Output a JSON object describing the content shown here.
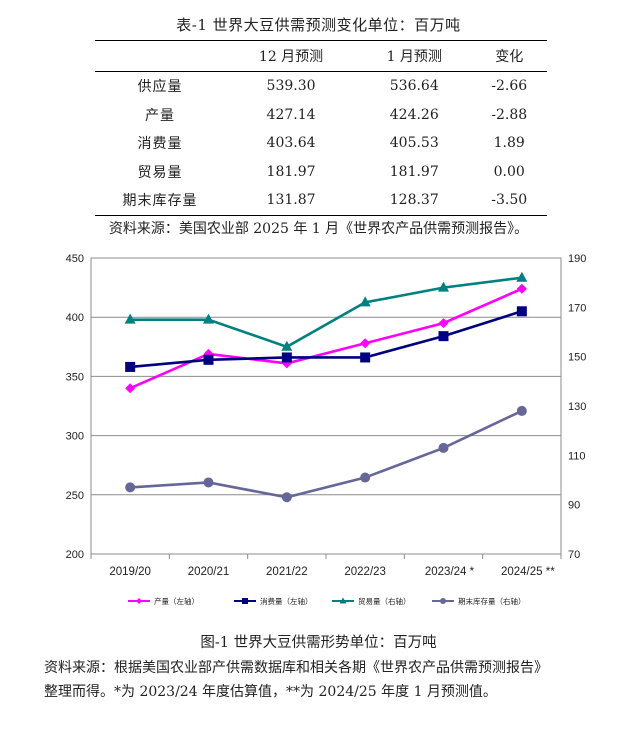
{
  "table": {
    "title": "表-1 世界大豆供需预测变化单位：百万吨",
    "headers": [
      "",
      "12 月预测",
      "1 月预测",
      "变化"
    ],
    "rows": [
      [
        "供应量",
        "539.30",
        "536.64",
        "-2.66"
      ],
      [
        "产量",
        "427.14",
        "424.26",
        "-2.88"
      ],
      [
        "消费量",
        "403.64",
        "405.53",
        "1.89"
      ],
      [
        "贸易量",
        "181.97",
        "181.97",
        "0.00"
      ],
      [
        "期末库存量",
        "131.87",
        "128.37",
        "-3.50"
      ]
    ],
    "source": "资料来源：美国农业部 2025 年 1 月《世界农产品供需预测报告》。"
  },
  "chart_data": {
    "type": "line",
    "categories": [
      "2019/20",
      "2020/21",
      "2021/22",
      "2022/23",
      "2023/24 *",
      "2024/25 **"
    ],
    "y_left": {
      "ticks": [
        200,
        250,
        300,
        350,
        400,
        450
      ],
      "lim": [
        200,
        450
      ]
    },
    "y_right": {
      "ticks": [
        70,
        90,
        110,
        130,
        150,
        170,
        190
      ],
      "lim": [
        70,
        190
      ]
    },
    "grid": true,
    "legend_position": "bottom",
    "series": [
      {
        "name": "产量（左轴）",
        "axis": "left",
        "color": "#ff00ff",
        "marker": "diamond",
        "values": [
          340,
          369,
          361,
          378,
          395,
          424
        ]
      },
      {
        "name": "消费量（左轴）",
        "axis": "left",
        "color": "#000080",
        "marker": "square",
        "values": [
          358,
          364,
          366,
          366,
          384,
          405
        ]
      },
      {
        "name": "贸易量（右轴）",
        "axis": "right",
        "color": "#008080",
        "marker": "triangle",
        "values": [
          165,
          165,
          154,
          172,
          178,
          182
        ]
      },
      {
        "name": "期末库存量（右轴）",
        "axis": "right",
        "color": "#666699",
        "marker": "circle",
        "values": [
          97,
          99,
          93,
          101,
          113,
          128
        ]
      }
    ]
  },
  "figure": {
    "caption": "图-1 世界大豆供需形势单位：百万吨",
    "source_line1": "资料来源：根据美国农业部产供需数据库和相关各期《世界农产品供需预测报告》",
    "source_line2": "整理而得。*为 2023/24 年度估算值，**为 2024/25 年度 1 月预测值。"
  }
}
